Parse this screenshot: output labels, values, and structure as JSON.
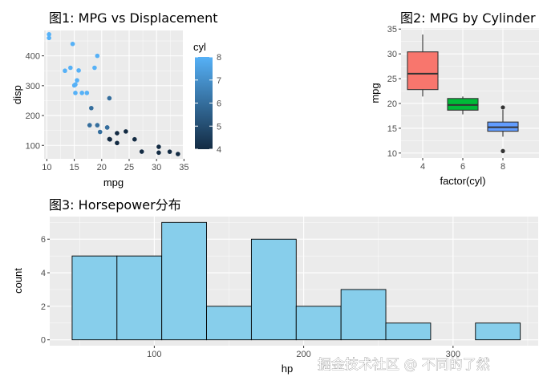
{
  "chart_data": [
    {
      "type": "scatter",
      "title": "图1: MPG vs Displacement",
      "xlabel": "mpg",
      "ylabel": "disp",
      "xlim": [
        9.5,
        34.8
      ],
      "ylim": [
        55,
        485
      ],
      "x_ticks": [
        10,
        15,
        20,
        25,
        30,
        35
      ],
      "y_ticks": [
        100,
        200,
        300,
        400
      ],
      "legend": {
        "title": "cyl",
        "position": "right",
        "min": 4,
        "max": 8,
        "ticks": [
          4,
          5,
          6,
          7,
          8
        ],
        "colors": {
          "low": "#132B43",
          "high": "#56B1F7"
        }
      },
      "points": [
        {
          "x": 21.0,
          "y": 160,
          "cyl": 6
        },
        {
          "x": 21.0,
          "y": 160,
          "cyl": 6
        },
        {
          "x": 22.8,
          "y": 108,
          "cyl": 4
        },
        {
          "x": 21.4,
          "y": 258,
          "cyl": 6
        },
        {
          "x": 18.7,
          "y": 360,
          "cyl": 8
        },
        {
          "x": 18.1,
          "y": 225,
          "cyl": 6
        },
        {
          "x": 14.3,
          "y": 360,
          "cyl": 8
        },
        {
          "x": 24.4,
          "y": 146.7,
          "cyl": 4
        },
        {
          "x": 22.8,
          "y": 140.8,
          "cyl": 4
        },
        {
          "x": 19.2,
          "y": 167.6,
          "cyl": 6
        },
        {
          "x": 17.8,
          "y": 167.6,
          "cyl": 6
        },
        {
          "x": 16.4,
          "y": 275.8,
          "cyl": 8
        },
        {
          "x": 17.3,
          "y": 275.8,
          "cyl": 8
        },
        {
          "x": 15.2,
          "y": 275.8,
          "cyl": 8
        },
        {
          "x": 10.4,
          "y": 472,
          "cyl": 8
        },
        {
          "x": 10.4,
          "y": 460,
          "cyl": 8
        },
        {
          "x": 14.7,
          "y": 440,
          "cyl": 8
        },
        {
          "x": 32.4,
          "y": 78.7,
          "cyl": 4
        },
        {
          "x": 30.4,
          "y": 75.7,
          "cyl": 4
        },
        {
          "x": 33.9,
          "y": 71.1,
          "cyl": 4
        },
        {
          "x": 21.5,
          "y": 120.1,
          "cyl": 4
        },
        {
          "x": 15.5,
          "y": 318,
          "cyl": 8
        },
        {
          "x": 15.2,
          "y": 304,
          "cyl": 8
        },
        {
          "x": 13.3,
          "y": 350,
          "cyl": 8
        },
        {
          "x": 19.2,
          "y": 400,
          "cyl": 8
        },
        {
          "x": 27.3,
          "y": 79,
          "cyl": 4
        },
        {
          "x": 26.0,
          "y": 120.3,
          "cyl": 4
        },
        {
          "x": 30.4,
          "y": 95.1,
          "cyl": 4
        },
        {
          "x": 15.8,
          "y": 351,
          "cyl": 8
        },
        {
          "x": 19.7,
          "y": 145,
          "cyl": 6
        },
        {
          "x": 15.0,
          "y": 301,
          "cyl": 8
        },
        {
          "x": 21.4,
          "y": 121,
          "cyl": 4
        }
      ]
    },
    {
      "type": "box",
      "title": "图2: MPG by Cylinder",
      "xlabel": "factor(cyl)",
      "ylabel": "mpg",
      "ylim": [
        9.0,
        35.2
      ],
      "y_ticks": [
        10,
        15,
        20,
        25,
        30,
        35
      ],
      "categories": [
        "4",
        "6",
        "8"
      ],
      "boxes": [
        {
          "category": "4",
          "min": 21.4,
          "q1": 22.8,
          "median": 26.0,
          "q3": 30.4,
          "max": 33.9,
          "outliers": [],
          "color": "#F8766D"
        },
        {
          "category": "6",
          "min": 17.8,
          "q1": 18.65,
          "median": 19.7,
          "q3": 21.0,
          "max": 21.4,
          "outliers": [],
          "color": "#00BA38"
        },
        {
          "category": "8",
          "min": 13.3,
          "q1": 14.4,
          "median": 15.2,
          "q3": 16.25,
          "max": 18.7,
          "outliers": [
            10.4,
            10.4,
            19.2
          ],
          "color": "#619CFF"
        }
      ]
    },
    {
      "type": "histogram",
      "title": "图3: Horsepower分布",
      "xlabel": "hp",
      "ylabel": "count",
      "xlim": [
        30,
        357
      ],
      "ylim": [
        -0.35,
        7.35
      ],
      "x_ticks": [
        100,
        200,
        300
      ],
      "y_ticks": [
        0,
        2,
        4,
        6
      ],
      "fill": "#87CEEB",
      "bins": [
        {
          "x0": 45,
          "x1": 75,
          "count": 5
        },
        {
          "x0": 75,
          "x1": 105,
          "count": 5
        },
        {
          "x0": 105,
          "x1": 135,
          "count": 7
        },
        {
          "x0": 135,
          "x1": 165,
          "count": 2
        },
        {
          "x0": 165,
          "x1": 195,
          "count": 6
        },
        {
          "x0": 195,
          "x1": 225,
          "count": 2
        },
        {
          "x0": 225,
          "x1": 255,
          "count": 3
        },
        {
          "x0": 255,
          "x1": 285,
          "count": 1
        },
        {
          "x0": 285,
          "x1": 315,
          "count": 0
        },
        {
          "x0": 315,
          "x1": 345,
          "count": 1
        }
      ]
    }
  ],
  "watermark": "掘金技术社区 @ 不同的了然"
}
